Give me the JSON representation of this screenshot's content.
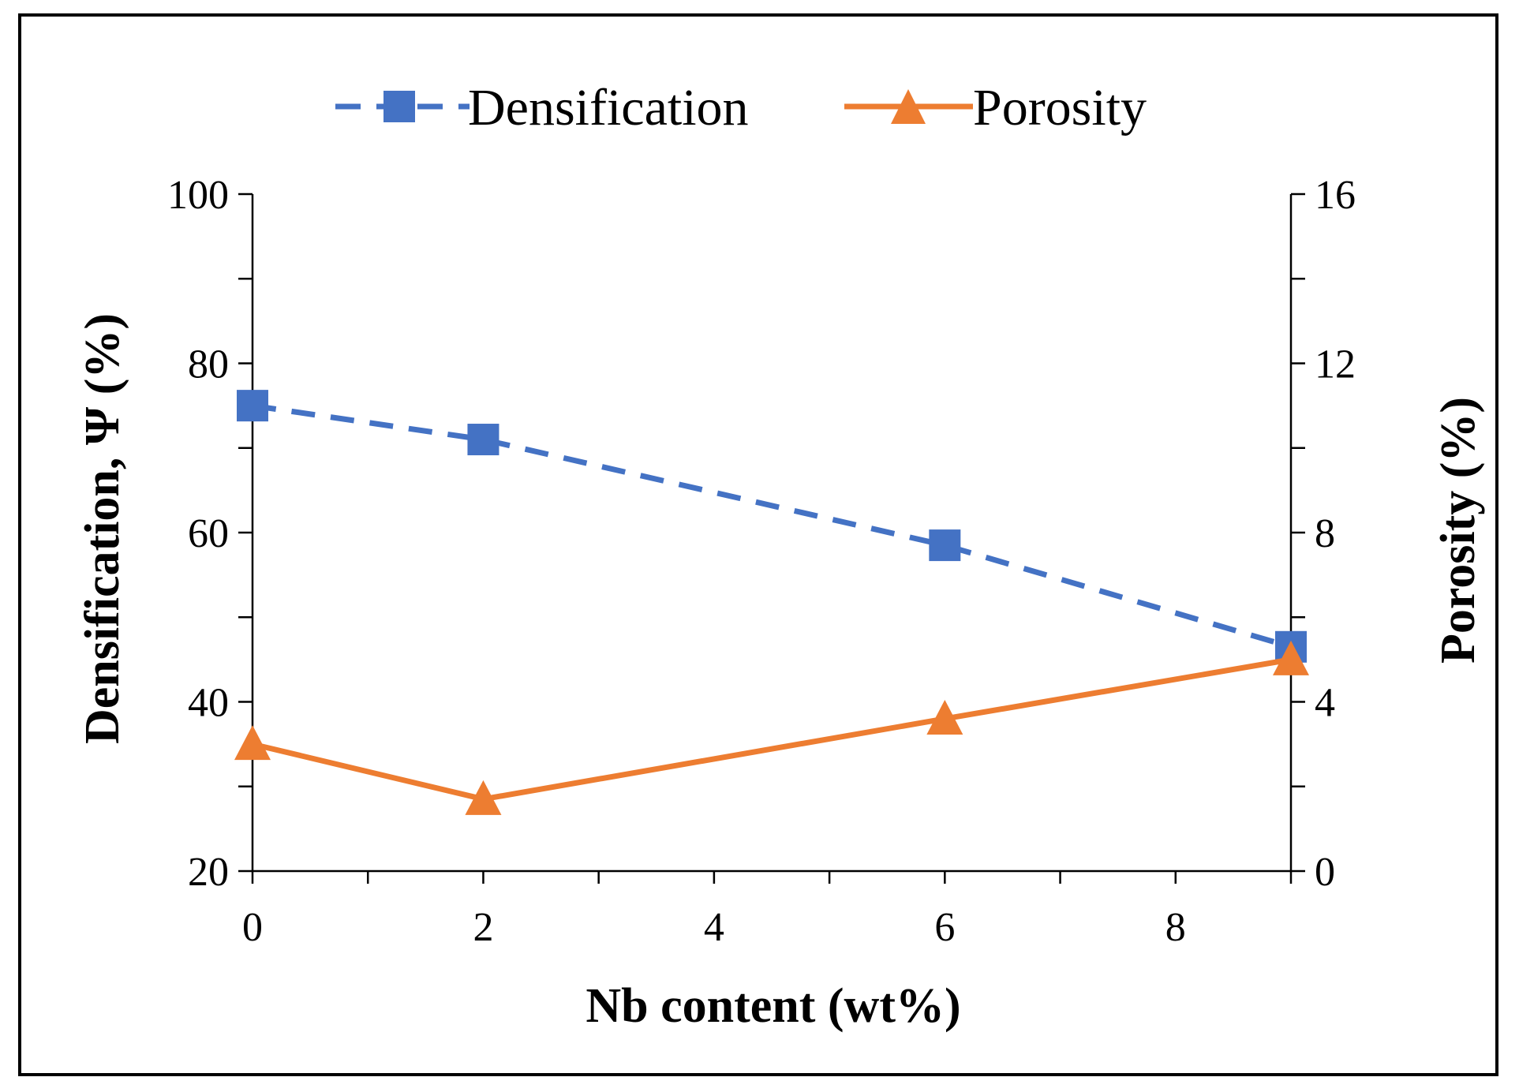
{
  "chart_data": {
    "type": "line",
    "title": "",
    "xlabel": "Nb content (wt%)",
    "ylabel": "Densification, Ψ (%)",
    "y2label": "Porosity (%)",
    "xlim": [
      0,
      9
    ],
    "ylim": [
      20,
      100
    ],
    "y2lim": [
      0,
      16
    ],
    "x_ticks": [
      "0",
      "2",
      "4",
      "6",
      "8"
    ],
    "y_ticks": [
      "20",
      "40",
      "60",
      "80",
      "100"
    ],
    "y2_ticks": [
      "0",
      "4",
      "8",
      "12",
      "16"
    ],
    "legend_position": "top-center",
    "series": [
      {
        "name": "Densification",
        "axis": "left",
        "color": "#4472C4",
        "line_style": "dashed",
        "marker": "square",
        "x": [
          0,
          2,
          6,
          9
        ],
        "values": [
          75,
          71,
          58.5,
          46.5
        ]
      },
      {
        "name": "Porosity",
        "axis": "right",
        "color": "#ED7D31",
        "line_style": "solid",
        "marker": "triangle",
        "x": [
          0,
          2,
          6,
          9
        ],
        "values": [
          3.0,
          1.7,
          3.6,
          5.0
        ]
      }
    ]
  }
}
